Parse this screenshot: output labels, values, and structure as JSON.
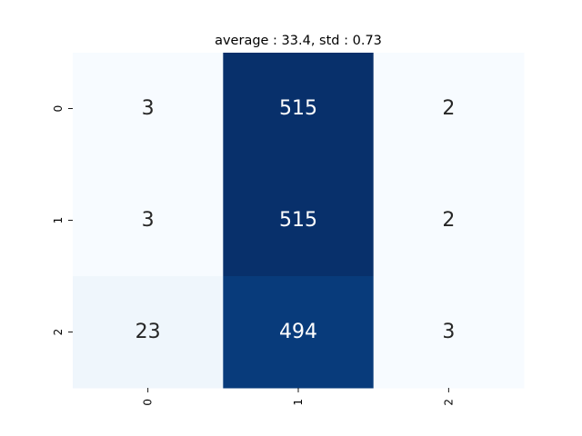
{
  "chart_data": {
    "type": "heatmap",
    "title": "average : 33.4, std : 0.73",
    "xlabel": "",
    "ylabel": "",
    "x_categories": [
      "0",
      "1",
      "2"
    ],
    "y_categories": [
      "0",
      "1",
      "2"
    ],
    "values": [
      [
        3,
        515,
        2
      ],
      [
        3,
        515,
        2
      ],
      [
        23,
        494,
        3
      ]
    ],
    "colormap": "Blues",
    "color_range": [
      2,
      515
    ],
    "colorbar": false,
    "grid": false,
    "annotations": true
  }
}
